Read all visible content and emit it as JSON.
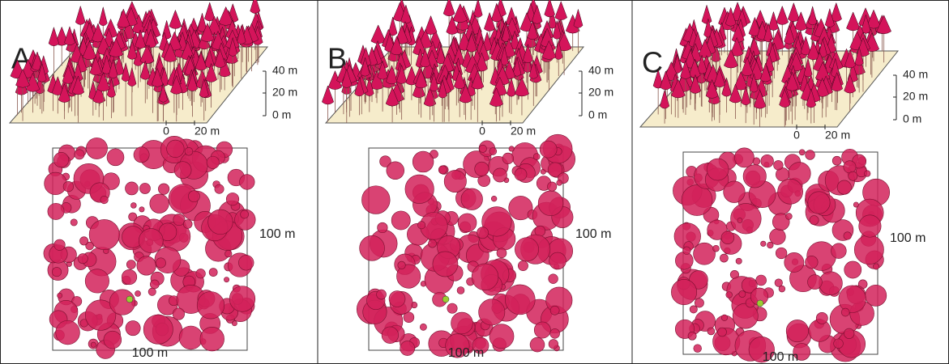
{
  "panels": [
    {
      "label": "A",
      "height_scale": [
        "40 m",
        "20 m",
        "0 m"
      ],
      "distance_scale": [
        "0",
        "20 m"
      ],
      "map_width": "100 m",
      "map_height": "100 m"
    },
    {
      "label": "B",
      "height_scale": [
        "40 m",
        "20 m",
        "0 m"
      ],
      "distance_scale": [
        "0",
        "20 m"
      ],
      "map_width": "100 m",
      "map_height": "100 m"
    },
    {
      "label": "C",
      "height_scale": [
        "40 m",
        "20 m",
        "0 m"
      ],
      "distance_scale": [
        "0",
        "20 m"
      ],
      "map_width": "100 m",
      "map_height": "100 m"
    }
  ]
}
